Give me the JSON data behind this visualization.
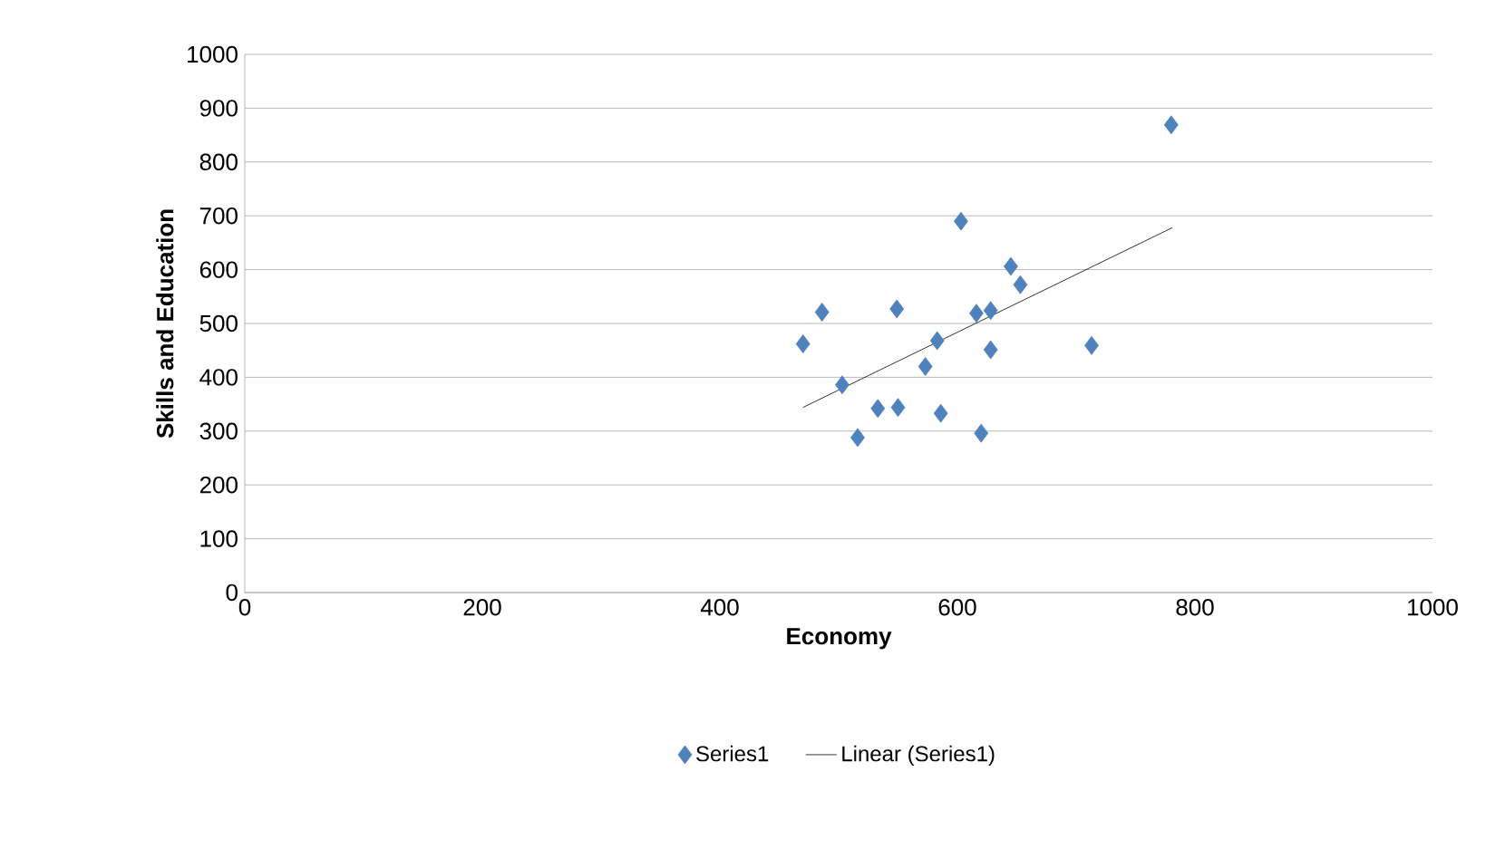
{
  "chart_data": {
    "type": "scatter",
    "xlabel": "Economy",
    "ylabel": "Skills and Education",
    "xlim": [
      0,
      1000
    ],
    "ylim": [
      0,
      1000
    ],
    "xticks": [
      0,
      200,
      400,
      600,
      800,
      1000
    ],
    "yticks": [
      0,
      100,
      200,
      300,
      400,
      500,
      600,
      700,
      800,
      900,
      1000
    ],
    "grid": "y",
    "legend": "bottom",
    "series": [
      {
        "name": "Series1",
        "marker": "diamond",
        "color": "#4f81bd",
        "x": [
          780,
          603,
          645,
          653,
          486,
          549,
          616,
          628,
          470,
          583,
          628,
          713,
          573,
          503,
          533,
          550,
          586,
          516,
          620
        ],
        "values": [
          869,
          690,
          606,
          572,
          521,
          527,
          519,
          524,
          462,
          468,
          451,
          459,
          420,
          386,
          342,
          344,
          333,
          288,
          296
        ]
      },
      {
        "name": "Linear (Series1)",
        "type": "line",
        "color": "#000000",
        "x": [
          470,
          781
        ],
        "values": [
          344,
          678
        ]
      }
    ]
  }
}
